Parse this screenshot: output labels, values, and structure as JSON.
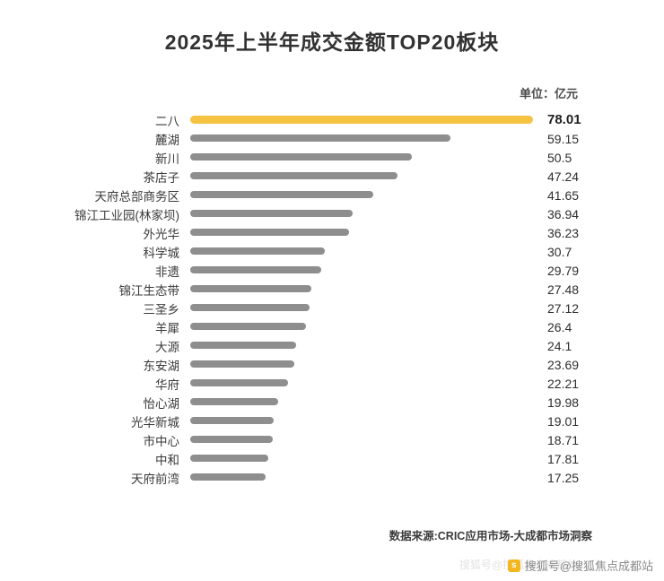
{
  "chart_data": {
    "type": "bar",
    "orientation": "horizontal",
    "title": "2025年上半年成交金额TOP20板块",
    "unit_label": "单位：亿元",
    "categories": [
      "二八",
      "麓湖",
      "新川",
      "茶店子",
      "天府总部商务区",
      "锦江工业园(林家坝)",
      "外光华",
      "科学城",
      "非遗",
      "锦江生态带",
      "三圣乡",
      "羊犀",
      "大源",
      "东安湖",
      "华府",
      "怡心湖",
      "光华新城",
      "市中心",
      "中和",
      "天府前湾"
    ],
    "values": [
      78.01,
      59.15,
      50.5,
      47.24,
      41.65,
      36.94,
      36.23,
      30.7,
      29.79,
      27.48,
      27.12,
      26.4,
      24.1,
      23.69,
      22.21,
      19.98,
      19.01,
      18.71,
      17.81,
      17.25
    ],
    "xlim": [
      0,
      78.01
    ],
    "highlight_index": 0,
    "highlight_color": "#f5c242",
    "bar_color": "#8e8e8e",
    "grid": false,
    "legend": "none",
    "value_labels_position": "right"
  },
  "footer": {
    "source": "数据来源:CRIC应用市场-大成都市场洞察"
  },
  "watermark": {
    "icon": "sohu-logo-icon",
    "icon_glyph": "s",
    "text": "搜狐号@搜狐焦点成都站",
    "ghost_text": "搜狐号@搜狐焦点成都站"
  }
}
